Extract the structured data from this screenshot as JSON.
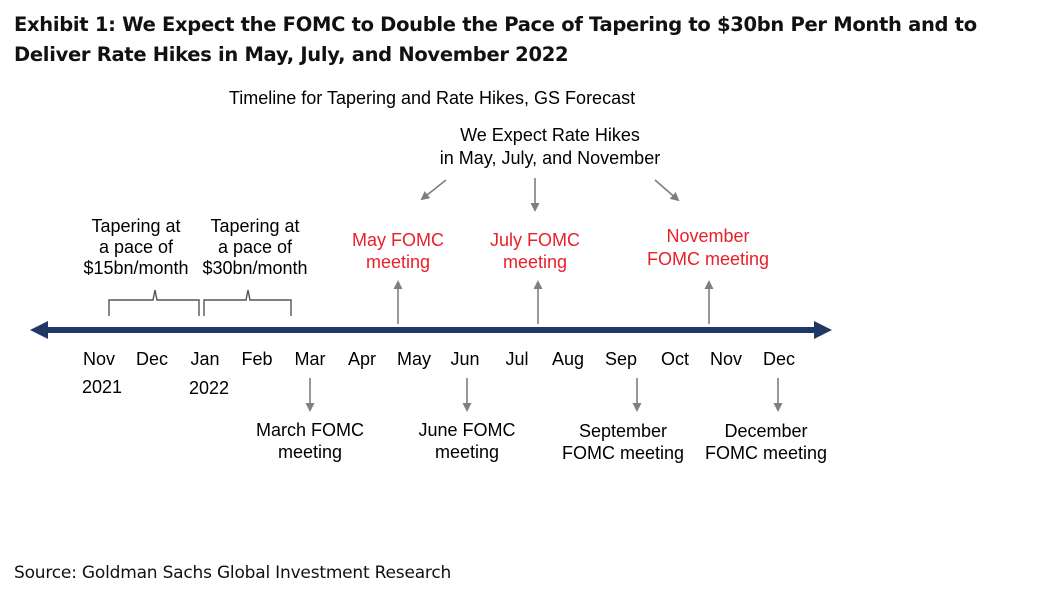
{
  "exhibit": {
    "title": "Exhibit 1: We Expect the FOMC to Double the Pace of Tapering to $30bn Per Month and to Deliver Rate Hikes in May, July, and November 2022",
    "source": "Source: Goldman Sachs Global Investment Research"
  },
  "diagram": {
    "subtitle": "Timeline for Tapering  and Rate Hikes, GS Forecast",
    "expect_note": {
      "line1": "We Expect Rate Hikes",
      "line2": "in May, July, and November"
    },
    "tapering": [
      {
        "line1": "Tapering at",
        "line2": "a pace of",
        "line3": "$15bn/month"
      },
      {
        "line1": "Tapering at",
        "line2": "a pace of",
        "line3": "$30bn/month"
      }
    ],
    "hikes": [
      {
        "line1": "May FOMC",
        "line2": "meeting"
      },
      {
        "line1": "July FOMC",
        "line2": "meeting"
      },
      {
        "line1": "November",
        "line2": "FOMC meeting"
      }
    ],
    "months": [
      "Nov",
      "Dec",
      "Jan",
      "Feb",
      "Mar",
      "Apr",
      "May",
      "Jun",
      "Jul",
      "Aug",
      "Sep",
      "Oct",
      "Nov",
      "Dec"
    ],
    "years": [
      "2021",
      "2022"
    ],
    "meetings_below": [
      {
        "line1": "March FOMC",
        "line2": "meeting"
      },
      {
        "line1": "June FOMC",
        "line2": "meeting"
      },
      {
        "line1": "September",
        "line2": "FOMC meeting"
      },
      {
        "line1": "December",
        "line2": "FOMC meeting"
      }
    ],
    "colors": {
      "axis": "#1f3864",
      "hike_text": "#e8202a",
      "arrows": "#7f7f7f"
    }
  }
}
